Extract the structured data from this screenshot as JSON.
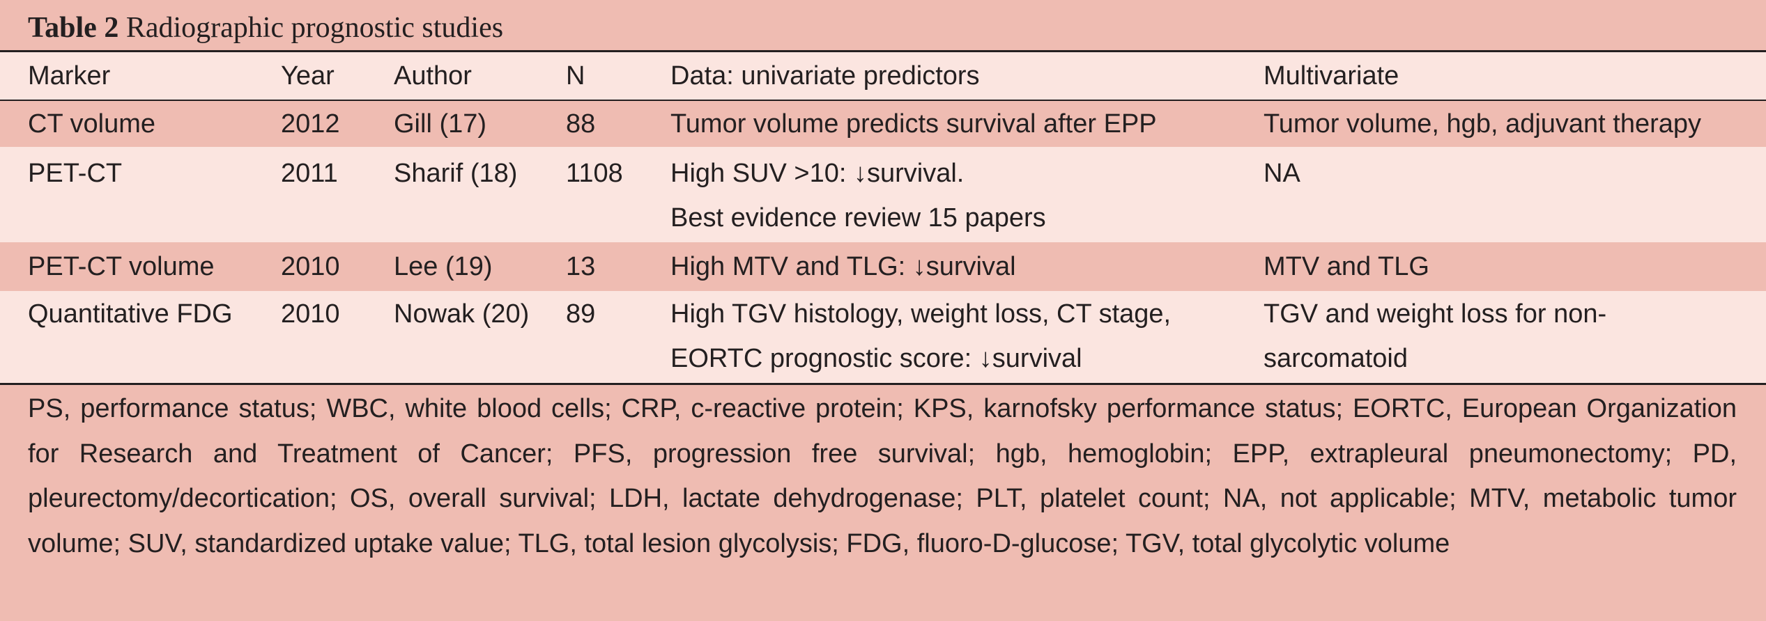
{
  "caption": {
    "label": "Table 2",
    "title": "Radiographic prognostic studies"
  },
  "columns": [
    "Marker",
    "Year",
    "Author",
    "N",
    "Data: univariate predictors",
    "Multivariate"
  ],
  "rows": [
    {
      "marker": "CT volume",
      "year": "2012",
      "author": "Gill (17)",
      "n": "88",
      "data": [
        "Tumor volume predicts survival after EPP"
      ],
      "multivariate": [
        "Tumor volume, hgb, adjuvant therapy"
      ]
    },
    {
      "marker": "PET-CT",
      "year": "2011",
      "author": "Sharif (18)",
      "n": "1108",
      "data": [
        "High SUV >10: ↓survival.",
        "Best evidence review 15 papers"
      ],
      "multivariate": [
        "NA"
      ]
    },
    {
      "marker": "PET-CT volume",
      "year": "2010",
      "author": "Lee (19)",
      "n": "13",
      "data": [
        "High MTV and TLG: ↓survival"
      ],
      "multivariate": [
        "MTV and TLG"
      ]
    },
    {
      "marker": "Quantitative FDG",
      "year": "2010",
      "author": "Nowak (20)",
      "n": "89",
      "data": [
        "High TGV histology, weight loss, CT stage,",
        "EORTC prognostic score: ↓survival"
      ],
      "multivariate": [
        "TGV and weight loss for non-",
        "sarcomatoid"
      ]
    }
  ],
  "footnote": [
    "PS, performance status; WBC, white blood cells; CRP, c-reactive protein; KPS, karnofsky performance status; EORTC, European",
    "Organization for Research and Treatment of Cancer; PFS, progression free survival; hgb, hemoglobin; EPP, extrapleural",
    "pneumonectomy; PD, pleurectomy/decortication; OS, overall survival; LDH, lactate dehydrogenase; PLT, platelet count; NA, not",
    "applicable; MTV, metabolic tumor volume; SUV, standardized uptake value; TLG, total lesion glycolysis; FDG, fluoro-D-glucose;",
    "TGV, total glycolytic volume"
  ],
  "colors": {
    "dark_band": "#efbcb2",
    "light_band": "#fbe5e0",
    "rule": "#231f20",
    "text": "#231f20"
  }
}
